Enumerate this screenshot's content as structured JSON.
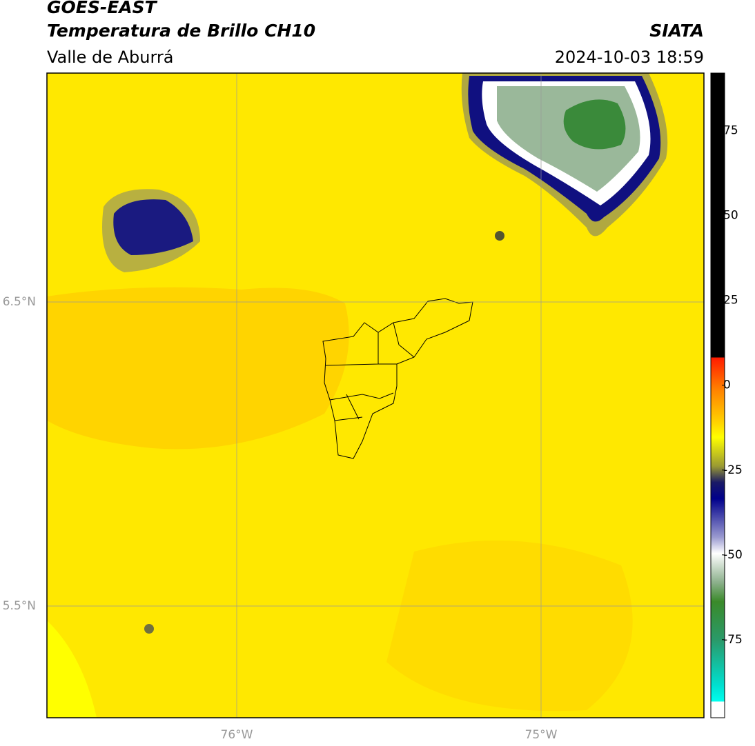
{
  "header": {
    "title": "GOES-EAST",
    "subtitle": "Temperatura de Brillo CH10",
    "region": "Valle de Aburrá",
    "source": "SIATA",
    "datetime": "2024-10-03 18:59"
  },
  "map": {
    "lon_labels": [
      "76°W",
      "75°W"
    ],
    "lat_labels": [
      "6.5°N",
      "5.5°N"
    ]
  },
  "colorbar": {
    "lim": [
      -98,
      92
    ],
    "ticks": [
      75,
      50,
      25,
      0,
      -25,
      -50,
      -75
    ]
  }
}
